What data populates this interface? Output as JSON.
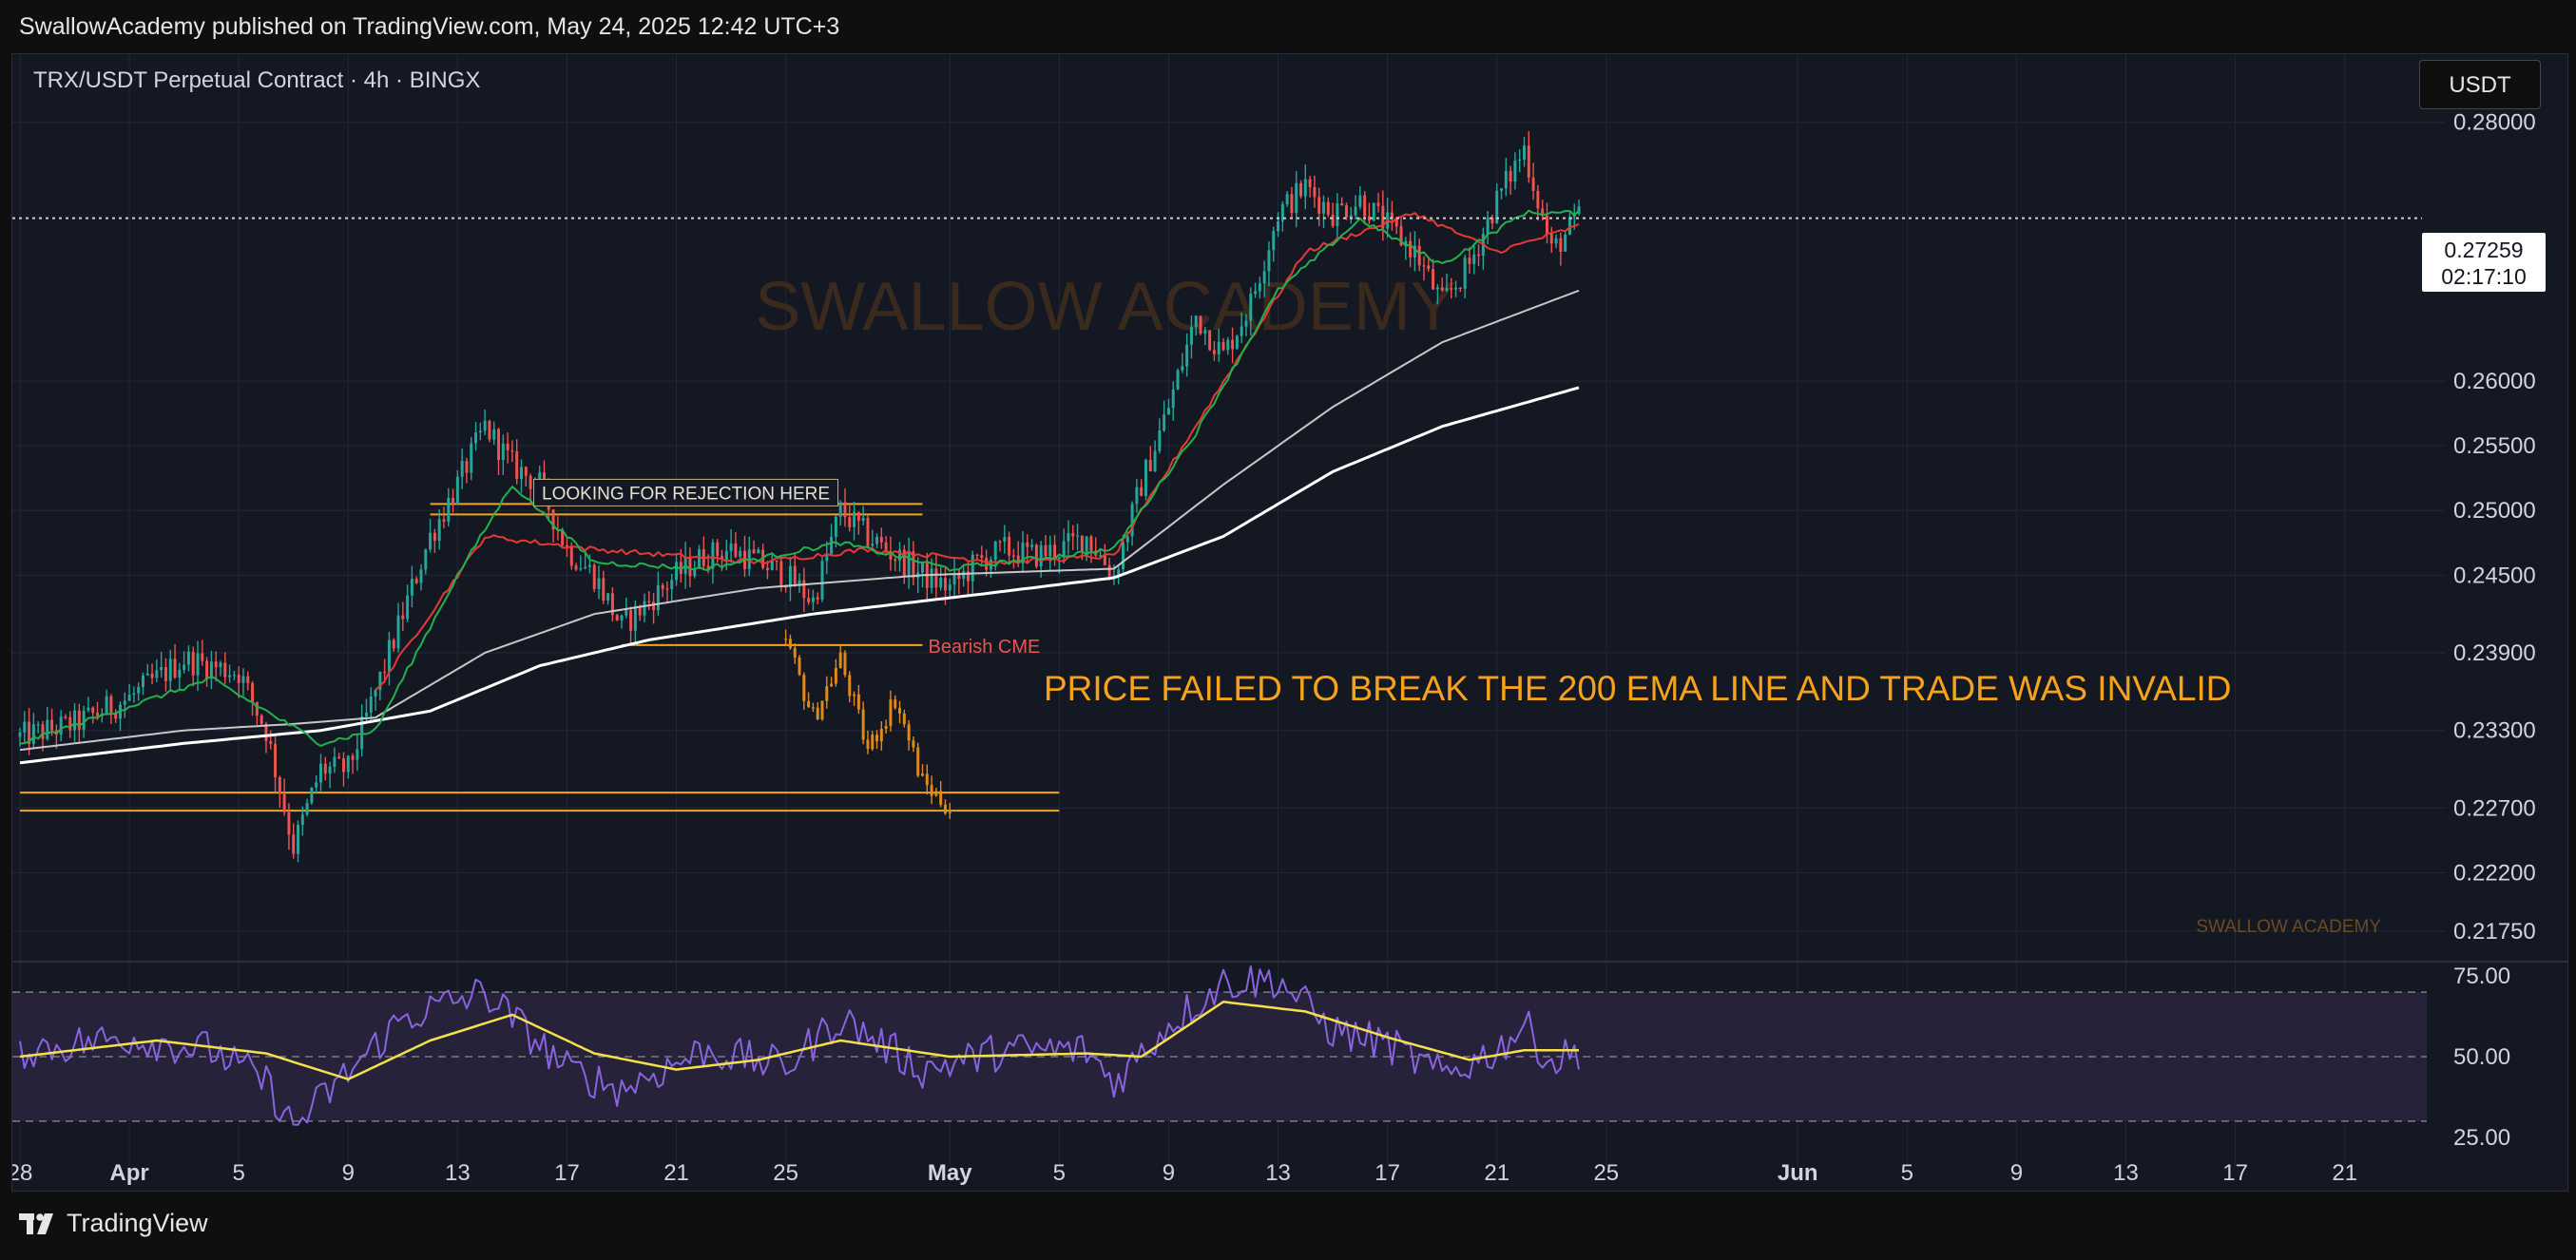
{
  "header": {
    "published_line": "SwallowAcademy published on TradingView.com, May 24, 2025 12:42 UTC+3"
  },
  "chart_header": {
    "symbol_line": "TRX/USDT Perpetual Contract · 4h · BINGX",
    "currency_label": "USDT"
  },
  "footer": {
    "logo_text": "TradingView"
  },
  "watermark": {
    "center_text": "SWALLOW ACADEMY",
    "corner_text": "SWALLOW ACADEMY"
  },
  "colors": {
    "background": "#141823",
    "grid": "#222736",
    "up_candle": "#26a69a",
    "down_candle": "#ef5350",
    "projection": "#e08a1a",
    "ema_fast": "#22b14c",
    "ema_mid_red": "#e53935",
    "ema_slow": "#c7c7c7",
    "ema_200": "#ffffff",
    "annotation": "#f7a21b",
    "rsi_line": "#8a63e0",
    "rsi_ma": "#f4e04d",
    "rsi_band": "#2b2541"
  },
  "chart_data": {
    "type": "candlestick",
    "interval": "4h",
    "x_tick_labels": [
      "28",
      "Apr",
      "5",
      "9",
      "13",
      "17",
      "21",
      "25",
      "May",
      "5",
      "9",
      "13",
      "17",
      "21",
      "25",
      "Jun",
      "5",
      "9",
      "13",
      "17",
      "21"
    ],
    "x_range": [
      "2025-03-28",
      "2025-06-24"
    ],
    "y_tick_labels": [
      "0.28000",
      "0.26000",
      "0.25500",
      "0.25000",
      "0.24500",
      "0.23900",
      "0.23300",
      "0.22700",
      "0.22200",
      "0.21750"
    ],
    "y_range": [
      0.2155,
      0.2838
    ],
    "last_price": {
      "value": "0.27259",
      "countdown": "02:17:10"
    },
    "price_anchors": [
      [
        "2025-03-28",
        0.2325
      ],
      [
        "2025-03-30",
        0.2335
      ],
      [
        "2025-04-01",
        0.2355
      ],
      [
        "2025-04-03",
        0.2385
      ],
      [
        "2025-04-05",
        0.2375
      ],
      [
        "2025-04-06",
        0.233
      ],
      [
        "2025-04-07",
        0.224
      ],
      [
        "2025-04-08",
        0.23
      ],
      [
        "2025-04-09",
        0.23
      ],
      [
        "2025-04-10",
        0.236
      ],
      [
        "2025-04-11",
        0.242
      ],
      [
        "2025-04-12",
        0.248
      ],
      [
        "2025-04-13",
        0.252
      ],
      [
        "2025-04-14",
        0.2565
      ],
      [
        "2025-04-15",
        0.2535
      ],
      [
        "2025-04-16",
        0.252
      ],
      [
        "2025-04-17",
        0.247
      ],
      [
        "2025-04-18",
        0.245
      ],
      [
        "2025-04-19",
        0.241
      ],
      [
        "2025-04-20",
        0.243
      ],
      [
        "2025-04-21",
        0.245
      ],
      [
        "2025-04-22",
        0.2465
      ],
      [
        "2025-04-23",
        0.247
      ],
      [
        "2025-04-24",
        0.246
      ],
      [
        "2025-04-25",
        0.245
      ],
      [
        "2025-04-26",
        0.243
      ],
      [
        "2025-04-27",
        0.25
      ],
      [
        "2025-04-28",
        0.248
      ],
      [
        "2025-04-29",
        0.2465
      ],
      [
        "2025-04-30",
        0.245
      ],
      [
        "2025-05-01",
        0.244
      ],
      [
        "2025-05-02",
        0.246
      ],
      [
        "2025-05-03",
        0.247
      ],
      [
        "2025-05-04",
        0.2465
      ],
      [
        "2025-05-05",
        0.247
      ],
      [
        "2025-05-06",
        0.248
      ],
      [
        "2025-05-07",
        0.245
      ],
      [
        "2025-05-08",
        0.252
      ],
      [
        "2025-05-09",
        0.258
      ],
      [
        "2025-05-10",
        0.265
      ],
      [
        "2025-05-11",
        0.262
      ],
      [
        "2025-05-12",
        0.266
      ],
      [
        "2025-05-13",
        0.273
      ],
      [
        "2025-05-14",
        0.275
      ],
      [
        "2025-05-15",
        0.273
      ],
      [
        "2025-05-16",
        0.274
      ],
      [
        "2025-05-17",
        0.272
      ],
      [
        "2025-05-18",
        0.27
      ],
      [
        "2025-05-19",
        0.266
      ],
      [
        "2025-05-20",
        0.269
      ],
      [
        "2025-05-21",
        0.274
      ],
      [
        "2025-05-22",
        0.278
      ],
      [
        "2025-05-23",
        0.27
      ],
      [
        "2025-05-24",
        0.2726
      ]
    ],
    "ema_fast": [
      [
        "2025-03-28",
        0.232
      ],
      [
        "2025-04-04",
        0.237
      ],
      [
        "2025-04-08",
        0.232
      ],
      [
        "2025-04-10",
        0.233
      ],
      [
        "2025-04-13",
        0.245
      ],
      [
        "2025-04-15",
        0.252
      ],
      [
        "2025-04-18",
        0.246
      ],
      [
        "2025-04-22",
        0.2455
      ],
      [
        "2025-04-27",
        0.2475
      ],
      [
        "2025-05-01",
        0.2455
      ],
      [
        "2025-05-07",
        0.247
      ],
      [
        "2025-05-10",
        0.256
      ],
      [
        "2025-05-13",
        0.267
      ],
      [
        "2025-05-16",
        0.2725
      ],
      [
        "2025-05-19",
        0.269
      ],
      [
        "2025-05-22",
        0.273
      ],
      [
        "2025-05-24",
        0.273
      ]
    ],
    "ema_mid_red": [
      [
        "2025-04-10",
        0.236
      ],
      [
        "2025-04-14",
        0.248
      ],
      [
        "2025-04-18",
        0.247
      ],
      [
        "2025-04-24",
        0.246
      ],
      [
        "2025-04-28",
        0.247
      ],
      [
        "2025-05-03",
        0.246
      ],
      [
        "2025-05-07",
        0.2465
      ],
      [
        "2025-05-14",
        0.27
      ],
      [
        "2025-05-18",
        0.273
      ],
      [
        "2025-05-21",
        0.27
      ],
      [
        "2025-05-24",
        0.272
      ]
    ],
    "ema_100": [
      [
        "2025-03-28",
        0.2315
      ],
      [
        "2025-04-03",
        0.233
      ],
      [
        "2025-04-07",
        0.2335
      ],
      [
        "2025-04-10",
        0.234
      ],
      [
        "2025-04-14",
        0.239
      ],
      [
        "2025-04-18",
        0.242
      ],
      [
        "2025-04-24",
        0.244
      ],
      [
        "2025-04-30",
        0.245
      ],
      [
        "2025-05-07",
        0.2455
      ],
      [
        "2025-05-11",
        0.252
      ],
      [
        "2025-05-15",
        0.258
      ],
      [
        "2025-05-19",
        0.263
      ],
      [
        "2025-05-24",
        0.267
      ]
    ],
    "ema_200": [
      [
        "2025-03-28",
        0.2305
      ],
      [
        "2025-04-03",
        0.232
      ],
      [
        "2025-04-08",
        0.233
      ],
      [
        "2025-04-12",
        0.2345
      ],
      [
        "2025-04-16",
        0.238
      ],
      [
        "2025-04-20",
        0.24
      ],
      [
        "2025-04-26",
        0.242
      ],
      [
        "2025-05-02",
        0.2435
      ],
      [
        "2025-05-07",
        0.2448
      ],
      [
        "2025-05-11",
        0.248
      ],
      [
        "2025-05-15",
        0.253
      ],
      [
        "2025-05-19",
        0.2565
      ],
      [
        "2025-05-24",
        0.2595
      ]
    ],
    "projection_path": [
      [
        "2025-04-25",
        0.24
      ],
      [
        "2025-04-26",
        0.234
      ],
      [
        "2025-04-27",
        0.2385
      ],
      [
        "2025-04-28",
        0.2315
      ],
      [
        "2025-04-29",
        0.2355
      ],
      [
        "2025-04-30",
        0.229
      ],
      [
        "2025-05-01",
        0.227
      ]
    ],
    "levels": [
      {
        "label": "LOOKING FOR REJECTION HERE",
        "price": 0.2505,
        "price_low": 0.2497,
        "from": "2025-04-12",
        "to": "2025-04-30"
      },
      {
        "label": "Bearish CME",
        "price": 0.2396,
        "from": "2025-04-19",
        "to": "2025-04-30"
      },
      {
        "label": "",
        "price": 0.2282,
        "from": "2025-03-28",
        "to": "2025-05-05"
      },
      {
        "label": "",
        "price": 0.2268,
        "from": "2025-03-28",
        "to": "2025-05-05"
      }
    ],
    "annotation": "PRICE FAILED TO BREAK THE 200 EMA LINE AND TRADE WAS INVALID",
    "rsi": {
      "y_tick_labels": [
        "75.00",
        "50.00",
        "25.00"
      ],
      "upper": 70,
      "middle": 50,
      "lower": 30,
      "y_range": [
        22,
        78
      ],
      "anchors": [
        [
          "2025-03-28",
          52
        ],
        [
          "2025-04-01",
          56
        ],
        [
          "2025-04-04",
          52
        ],
        [
          "2025-04-06",
          42
        ],
        [
          "2025-04-07",
          28
        ],
        [
          "2025-04-09",
          45
        ],
        [
          "2025-04-11",
          62
        ],
        [
          "2025-04-14",
          70
        ],
        [
          "2025-04-17",
          46
        ],
        [
          "2025-04-19",
          40
        ],
        [
          "2025-04-22",
          52
        ],
        [
          "2025-04-25",
          47
        ],
        [
          "2025-04-27",
          62
        ],
        [
          "2025-04-30",
          46
        ],
        [
          "2025-05-03",
          52
        ],
        [
          "2025-05-06",
          52
        ],
        [
          "2025-05-07",
          42
        ],
        [
          "2025-05-09",
          60
        ],
        [
          "2025-05-11",
          73
        ],
        [
          "2025-05-13",
          74
        ],
        [
          "2025-05-15",
          58
        ],
        [
          "2025-05-17",
          54
        ],
        [
          "2025-05-19",
          44
        ],
        [
          "2025-05-21",
          52
        ],
        [
          "2025-05-22",
          60
        ],
        [
          "2025-05-23",
          48
        ],
        [
          "2025-05-24",
          52
        ]
      ],
      "ma_anchors": [
        [
          "2025-03-28",
          50
        ],
        [
          "2025-04-02",
          55
        ],
        [
          "2025-04-06",
          51
        ],
        [
          "2025-04-09",
          43
        ],
        [
          "2025-04-12",
          55
        ],
        [
          "2025-04-15",
          63
        ],
        [
          "2025-04-18",
          51
        ],
        [
          "2025-04-21",
          46
        ],
        [
          "2025-04-24",
          49
        ],
        [
          "2025-04-27",
          55
        ],
        [
          "2025-05-01",
          50
        ],
        [
          "2025-05-06",
          51
        ],
        [
          "2025-05-08",
          50
        ],
        [
          "2025-05-11",
          67
        ],
        [
          "2025-05-14",
          64
        ],
        [
          "2025-05-17",
          56
        ],
        [
          "2025-05-20",
          49
        ],
        [
          "2025-05-22",
          52
        ],
        [
          "2025-05-24",
          52
        ]
      ]
    }
  }
}
